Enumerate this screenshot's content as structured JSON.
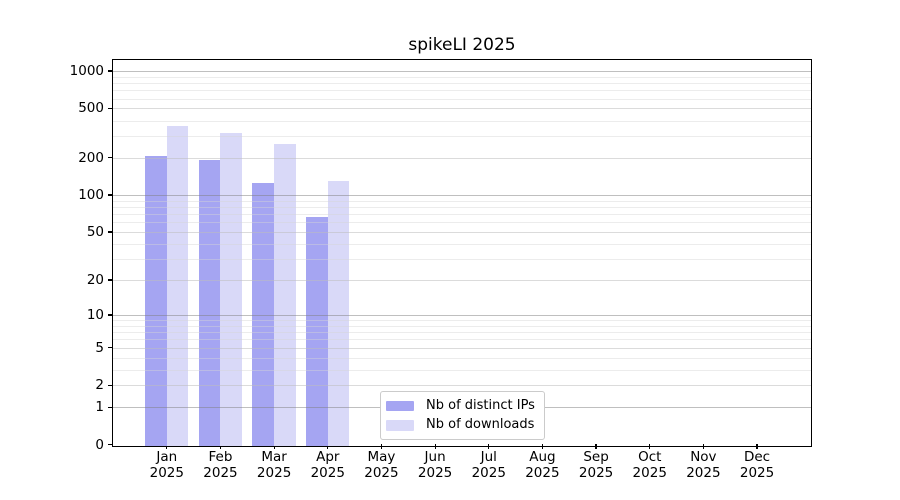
{
  "chart_data": {
    "type": "bar",
    "title": "spikeLI 2025",
    "categories": [
      "Jan 2025",
      "Feb 2025",
      "Mar 2025",
      "Apr 2025",
      "May 2025",
      "Jun 2025",
      "Jul 2025",
      "Aug 2025",
      "Sep 2025",
      "Oct 2025",
      "Nov 2025",
      "Dec 2025"
    ],
    "series": [
      {
        "name": "Nb of distinct IPs",
        "color": "#a5a5f2",
        "values": [
          215,
          200,
          130,
          68,
          0,
          0,
          0,
          0,
          0,
          0,
          0,
          0
        ]
      },
      {
        "name": "Nb of downloads",
        "color": "#d9d9f8",
        "values": [
          370,
          330,
          265,
          133,
          0,
          0,
          0,
          0,
          0,
          0,
          0,
          0
        ]
      }
    ],
    "xlabel": "",
    "ylabel": "",
    "yscale": "log1p",
    "yticks": [
      0,
      1,
      2,
      5,
      10,
      20,
      50,
      100,
      200,
      500,
      1000
    ],
    "ylim": [
      0,
      1240
    ],
    "grid": "horizontal",
    "legend_position": "bottom-center-inside"
  }
}
